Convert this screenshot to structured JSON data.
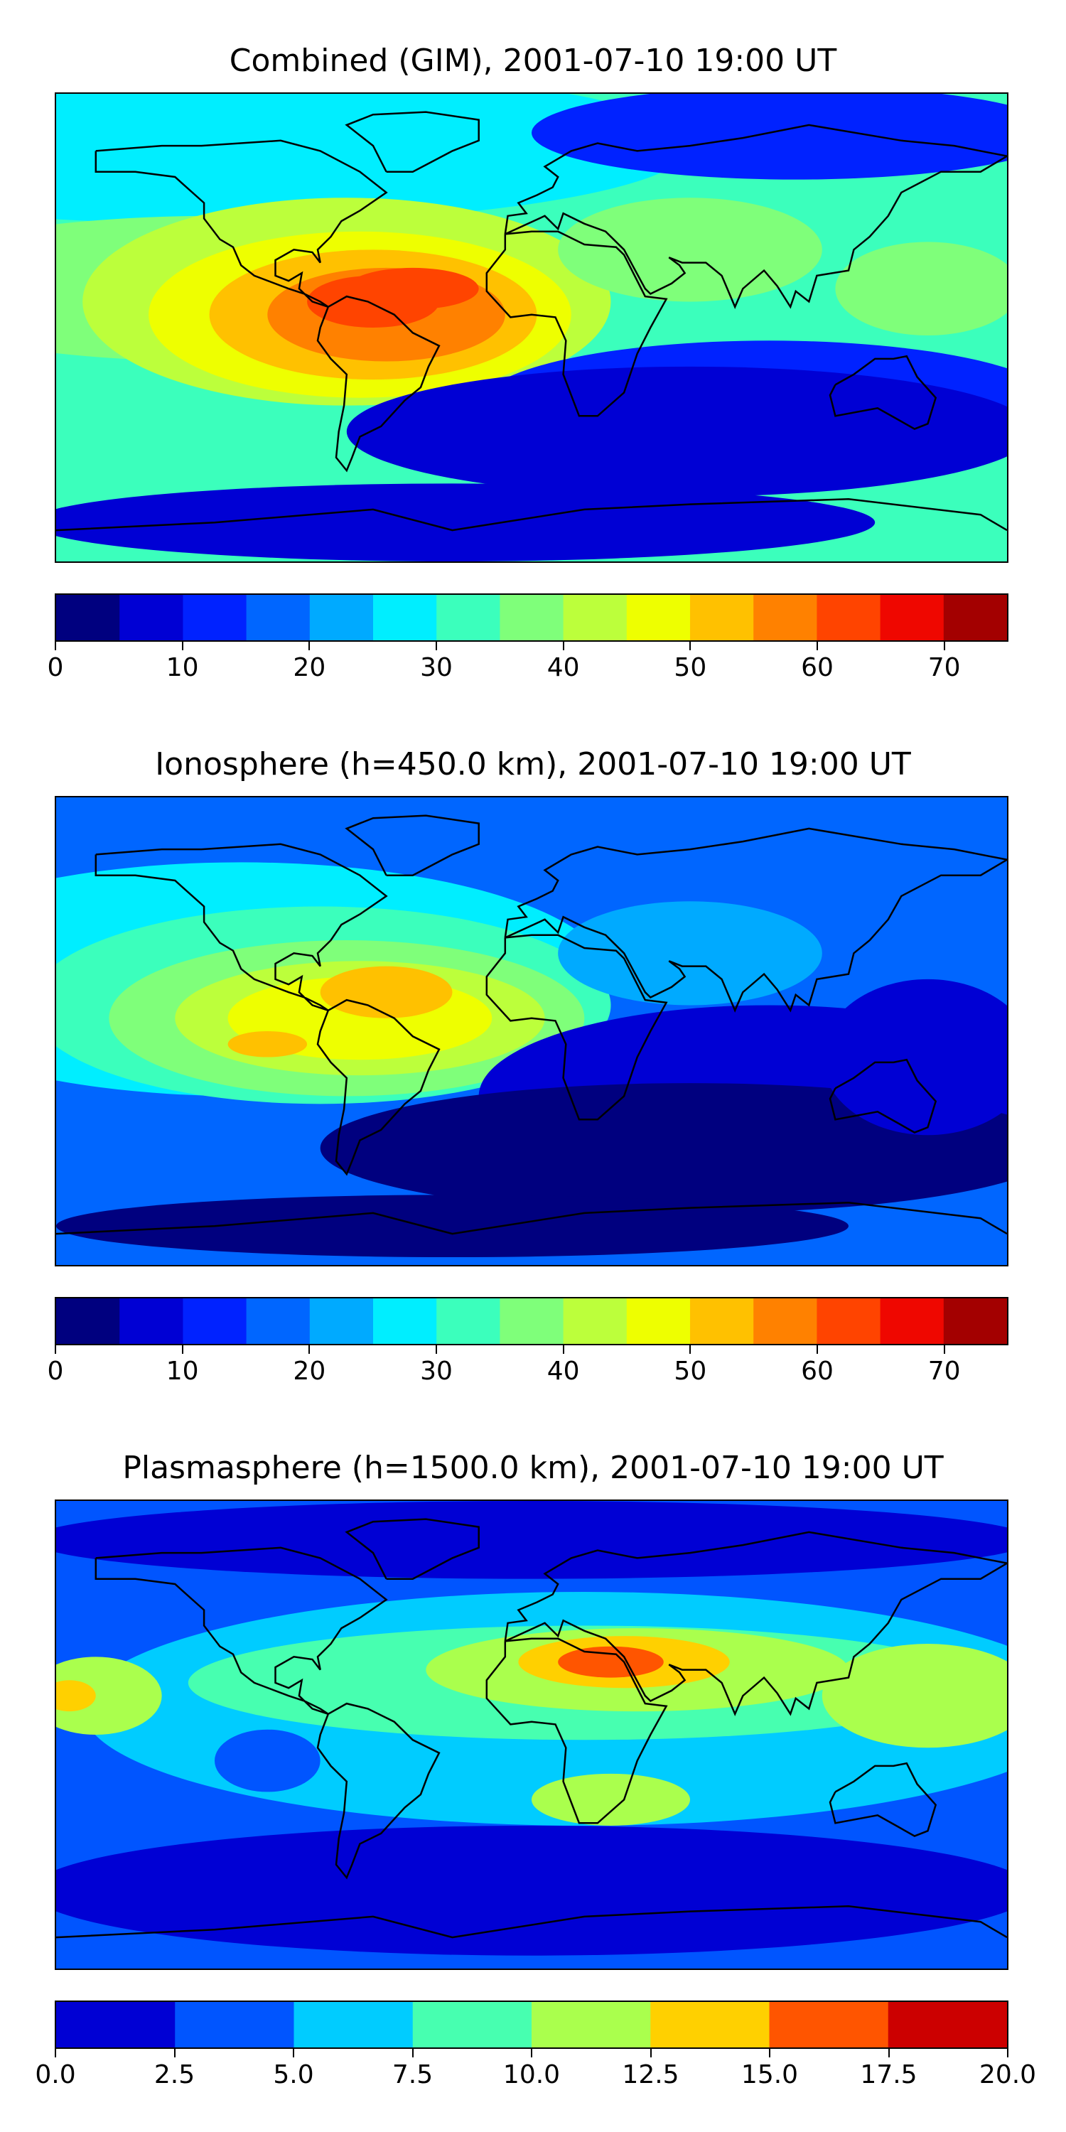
{
  "panels": [
    {
      "title": "Combined (GIM), 2001-07-10 19:00 UT",
      "colormap": [
        "#00007f",
        "#0000d4",
        "#0022ff",
        "#0066ff",
        "#00aaff",
        "#00eeff",
        "#3bffbc",
        "#7fff7a",
        "#bcff3b",
        "#eeff00",
        "#ffc100",
        "#ff8100",
        "#ff4400",
        "#ef0700",
        "#a30000"
      ],
      "levels": [
        0,
        5,
        10,
        15,
        20,
        25,
        30,
        35,
        40,
        45,
        50,
        55,
        60,
        65,
        70,
        75
      ],
      "tick_labels": [
        "0",
        "10",
        "20",
        "30",
        "40",
        "50",
        "60",
        "70"
      ],
      "tick_values": [
        0,
        10,
        20,
        30,
        40,
        50,
        60,
        70
      ],
      "background_level": 6,
      "blobs": [
        {
          "lon": -120,
          "lat": 70,
          "rx": 180,
          "ry": 30,
          "level": 5
        },
        {
          "lon": -120,
          "lat": 15,
          "rx": 130,
          "ry": 28,
          "level": 7
        },
        {
          "lon": -70,
          "lat": 10,
          "rx": 100,
          "ry": 40,
          "level": 8
        },
        {
          "lon": -65,
          "lat": 5,
          "rx": 80,
          "ry": 32,
          "level": 9
        },
        {
          "lon": -60,
          "lat": 5,
          "rx": 62,
          "ry": 25,
          "level": 10
        },
        {
          "lon": -55,
          "lat": 5,
          "rx": 45,
          "ry": 18,
          "level": 11
        },
        {
          "lon": -60,
          "lat": 10,
          "rx": 25,
          "ry": 10,
          "level": 12
        },
        {
          "lon": -45,
          "lat": 15,
          "rx": 25,
          "ry": 8,
          "level": 12
        },
        {
          "lon": 60,
          "lat": 30,
          "rx": 50,
          "ry": 20,
          "level": 7
        },
        {
          "lon": 150,
          "lat": 15,
          "rx": 35,
          "ry": 18,
          "level": 7
        },
        {
          "lon": 90,
          "lat": -30,
          "rx": 110,
          "ry": 25,
          "level": 2
        },
        {
          "lon": 60,
          "lat": -40,
          "rx": 130,
          "ry": 25,
          "level": 1
        },
        {
          "lon": 100,
          "lat": 75,
          "rx": 100,
          "ry": 18,
          "level": 2
        },
        {
          "lon": -30,
          "lat": -75,
          "rx": 160,
          "ry": 15,
          "level": 1
        }
      ]
    },
    {
      "title": "Ionosphere  (h=450.0 km), 2001-07-10 19:00 UT",
      "colormap": [
        "#00007f",
        "#0000d4",
        "#0022ff",
        "#0066ff",
        "#00aaff",
        "#00eeff",
        "#3bffbc",
        "#7fff7a",
        "#bcff3b",
        "#eeff00",
        "#ffc100",
        "#ff8100",
        "#ff4400",
        "#ef0700",
        "#a30000"
      ],
      "levels": [
        0,
        5,
        10,
        15,
        20,
        25,
        30,
        35,
        40,
        45,
        50,
        55,
        60,
        65,
        70,
        75
      ],
      "tick_labels": [
        "0",
        "10",
        "20",
        "30",
        "40",
        "50",
        "60",
        "70"
      ],
      "tick_values": [
        0,
        10,
        20,
        30,
        40,
        50,
        60,
        70
      ],
      "background_level": 3,
      "blobs": [
        {
          "lon": -110,
          "lat": 20,
          "rx": 140,
          "ry": 45,
          "level": 5
        },
        {
          "lon": -80,
          "lat": 10,
          "rx": 110,
          "ry": 38,
          "level": 6
        },
        {
          "lon": -70,
          "lat": 5,
          "rx": 90,
          "ry": 30,
          "level": 7
        },
        {
          "lon": -65,
          "lat": 5,
          "rx": 70,
          "ry": 22,
          "level": 8
        },
        {
          "lon": -65,
          "lat": 5,
          "rx": 50,
          "ry": 16,
          "level": 9
        },
        {
          "lon": -55,
          "lat": 15,
          "rx": 25,
          "ry": 10,
          "level": 10
        },
        {
          "lon": -100,
          "lat": -5,
          "rx": 15,
          "ry": 5,
          "level": 10
        },
        {
          "lon": 60,
          "lat": 30,
          "rx": 50,
          "ry": 20,
          "level": 4
        },
        {
          "lon": 90,
          "lat": -25,
          "rx": 110,
          "ry": 35,
          "level": 1
        },
        {
          "lon": 60,
          "lat": -45,
          "rx": 140,
          "ry": 25,
          "level": 0
        },
        {
          "lon": -30,
          "lat": -75,
          "rx": 150,
          "ry": 12,
          "level": 0
        },
        {
          "lon": 150,
          "lat": -10,
          "rx": 40,
          "ry": 30,
          "level": 1
        }
      ]
    },
    {
      "title": "Plasmasphere (h=1500.0 km), 2001-07-10 19:00 UT",
      "colormap": [
        "#0000d4",
        "#0055ff",
        "#00ccff",
        "#47ffb0",
        "#aaff4d",
        "#ffd000",
        "#ff5500",
        "#cc0000"
      ],
      "levels": [
        0,
        2.5,
        5,
        7.5,
        10,
        12.5,
        15,
        17.5,
        20
      ],
      "tick_labels": [
        "0.0",
        "2.5",
        "5.0",
        "7.5",
        "10.0",
        "12.5",
        "15.0",
        "17.5",
        "20.0"
      ],
      "tick_values": [
        0,
        2.5,
        5,
        7.5,
        10,
        12.5,
        15,
        17.5,
        20
      ],
      "background_level": 1,
      "blobs": [
        {
          "lon": 20,
          "lat": 10,
          "rx": 190,
          "ry": 45,
          "level": 2
        },
        {
          "lon": 20,
          "lat": 20,
          "rx": 150,
          "ry": 22,
          "level": 3
        },
        {
          "lon": 40,
          "lat": 25,
          "rx": 80,
          "ry": 16,
          "level": 4
        },
        {
          "lon": 35,
          "lat": 28,
          "rx": 40,
          "ry": 10,
          "level": 5
        },
        {
          "lon": 30,
          "lat": 28,
          "rx": 20,
          "ry": 6,
          "level": 6
        },
        {
          "lon": 150,
          "lat": 15,
          "rx": 40,
          "ry": 20,
          "level": 4
        },
        {
          "lon": -165,
          "lat": 15,
          "rx": 25,
          "ry": 15,
          "level": 4
        },
        {
          "lon": -175,
          "lat": 15,
          "rx": 10,
          "ry": 6,
          "level": 5
        },
        {
          "lon": 30,
          "lat": -25,
          "rx": 30,
          "ry": 10,
          "level": 4
        },
        {
          "lon": -100,
          "lat": -10,
          "rx": 20,
          "ry": 12,
          "level": 1
        },
        {
          "lon": 0,
          "lat": -60,
          "rx": 190,
          "ry": 25,
          "level": 0
        },
        {
          "lon": 0,
          "lat": 75,
          "rx": 190,
          "ry": 15,
          "level": 0
        }
      ]
    }
  ]
}
